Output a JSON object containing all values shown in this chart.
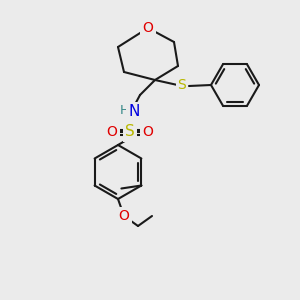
{
  "background_color": "#ebebeb",
  "bond_color": "#1a1a1a",
  "atom_colors": {
    "O": "#e00000",
    "S_thio": "#b8b800",
    "S_sulfo": "#b8b800",
    "N": "#0000e0",
    "H": "#3a8a8a",
    "C": "#1a1a1a"
  },
  "lw": 1.5,
  "font_size_atoms": 10,
  "fig_size": [
    3.0,
    3.0
  ],
  "dpi": 100
}
